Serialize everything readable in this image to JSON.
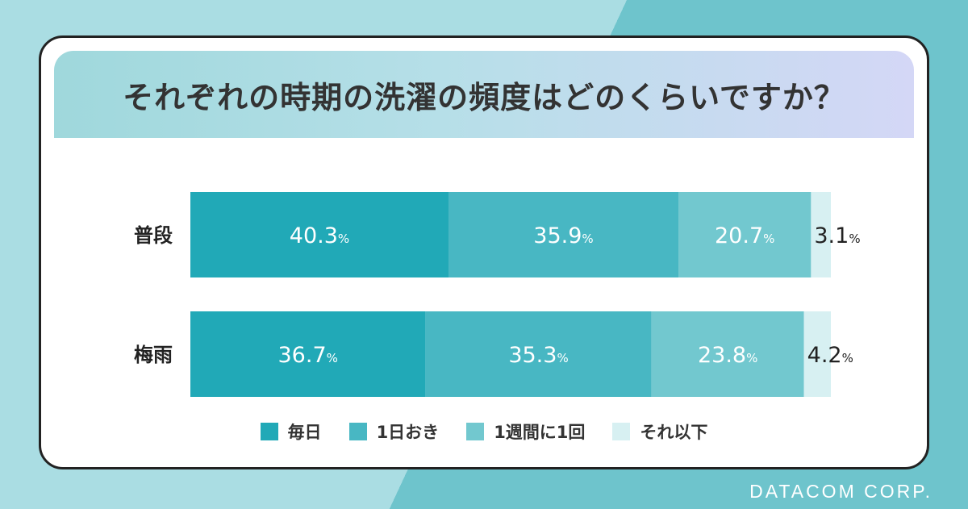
{
  "title": "それぞれの時期の洗濯の頻度はどのくらいですか？",
  "brand": "DATACOM CORP.",
  "colors": [
    "#21a9b7",
    "#48b7c3",
    "#72c8cf",
    "#d7f0f2"
  ],
  "chart_data": {
    "type": "bar",
    "orientation": "horizontal",
    "stacked": true,
    "title": "それぞれの時期の洗濯の頻度はどのくらいですか？",
    "categories": [
      "普段",
      "梅雨"
    ],
    "series": [
      {
        "name": "毎日",
        "values": [
          40.3,
          36.7
        ]
      },
      {
        "name": "1日おき",
        "values": [
          35.9,
          35.3
        ]
      },
      {
        "name": "1週間に1回",
        "values": [
          20.7,
          23.8
        ]
      },
      {
        "name": "それ以下",
        "values": [
          3.1,
          4.2
        ]
      }
    ],
    "unit": "%",
    "xlim": [
      0,
      100
    ],
    "grid": false,
    "legend": "bottom"
  }
}
